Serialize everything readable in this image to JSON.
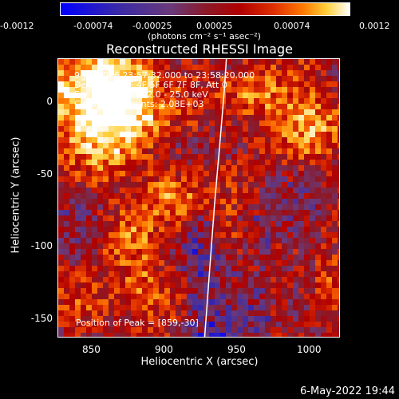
{
  "colorbar": {
    "tick_labels": [
      "-0.0012",
      "-0.00074",
      "-0.00025",
      "0.00025",
      "0.00074",
      "0.0012"
    ],
    "units": "(photons cm⁻² s⁻¹ asec⁻²)",
    "colors": [
      "#0000ff",
      "#3a2aa8",
      "#6a3a7a",
      "#8a1a2a",
      "#b00000",
      "#e03000",
      "#ff7a00",
      "#ffcf3a",
      "#ffffff"
    ]
  },
  "plot": {
    "title": "Reconstructed RHESSI Image",
    "info_lines": [
      "9-Jul-2006 23:57:32.000 to 23:58:20.000",
      "Detectors: 3F 4F 5F 6F 7F 8F, Att 0",
      "Energy Range: 12.0 - 25.0 keV",
      "Clean    Total counts: 2.08E+03"
    ],
    "peak_label": "Position of Peak = [859,-30]",
    "limb_color": "#ffffff"
  },
  "chart_data": {
    "type": "heatmap",
    "title": "Reconstructed RHESSI Image",
    "xlabel": "Heliocentric X (arcsec)",
    "ylabel": "Heliocentric Y (arcsec)",
    "xlim": [
      827,
      1021
    ],
    "ylim": [
      -166,
      26
    ],
    "x_ticks": [
      850,
      900,
      950,
      1000
    ],
    "y_ticks": [
      0,
      -50,
      -100,
      -150
    ],
    "x_tick_labels": [
      "850",
      "900",
      "950",
      "1000"
    ],
    "y_tick_labels": [
      "0",
      "-50",
      "-100",
      "-150"
    ],
    "color_range": [
      -0.0012,
      0.0012
    ],
    "peak": [
      859,
      -30
    ],
    "grid": false
  },
  "footer": {
    "timestamp": "6-May-2022 19:44"
  }
}
